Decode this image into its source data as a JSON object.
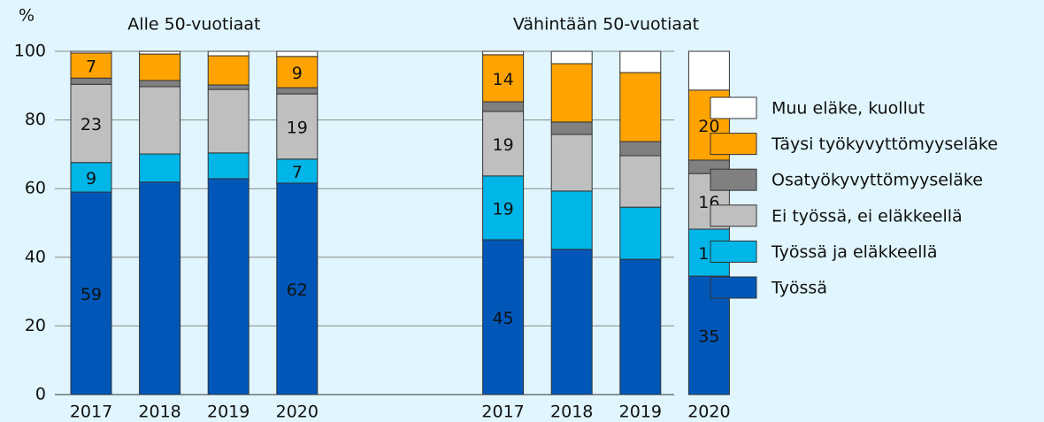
{
  "chart_data": {
    "type": "stacked-bar",
    "y_label": "%",
    "group_labels": [
      "Alle 50-vuotiaat",
      "Vähintään 50-vuotiaat"
    ],
    "categories": [
      "2017",
      "2018",
      "2019",
      "2020",
      "2017",
      "2018",
      "2019",
      "2020"
    ],
    "ylim": [
      0,
      100
    ],
    "yticks": [
      0,
      20,
      40,
      60,
      80,
      100
    ],
    "grid": true,
    "series": [
      {
        "name": "Työssä",
        "color": "#0057b8",
        "values": [
          59,
          61.9,
          62.9,
          61.6,
          45.1,
          42.3,
          39.4,
          34.5
        ],
        "value_labels": [
          "59",
          null,
          null,
          "62",
          "45",
          null,
          null,
          "35"
        ]
      },
      {
        "name": "Työssä ja eläkkeellä",
        "color": "#00b5e8",
        "values": [
          8.6,
          8.2,
          7.5,
          7,
          18.6,
          17,
          15.2,
          13.7
        ],
        "value_labels": [
          "9",
          null,
          null,
          "7",
          "19",
          null,
          null,
          "14"
        ]
      },
      {
        "name": "Ei työssä, ei eläkkeellä",
        "color": "#bfbfbf",
        "values": [
          22.8,
          19.6,
          18.5,
          19,
          18.8,
          16.5,
          15,
          16.2
        ],
        "value_labels": [
          "23",
          null,
          null,
          "19",
          "19",
          null,
          null,
          "16"
        ]
      },
      {
        "name": "Osatyökyvyttömyyseläke",
        "color": "#808080",
        "values": [
          1.8,
          1.8,
          1.3,
          1.8,
          2.8,
          3.6,
          4.1,
          3.9
        ]
      },
      {
        "name": "Täysi työkyvyttömyyseläke",
        "color": "#ffa300",
        "values": [
          7.3,
          7.7,
          8.5,
          9.1,
          13.7,
          17,
          20.1,
          20.4
        ],
        "value_labels": [
          "7",
          null,
          null,
          "9",
          "14",
          null,
          null,
          "20"
        ]
      },
      {
        "name": "Muu eläke, kuollut",
        "color": "#ffffff",
        "values": [
          0.5,
          0.8,
          1.3,
          1.5,
          1,
          3.6,
          6.2,
          11.3
        ]
      }
    ]
  }
}
